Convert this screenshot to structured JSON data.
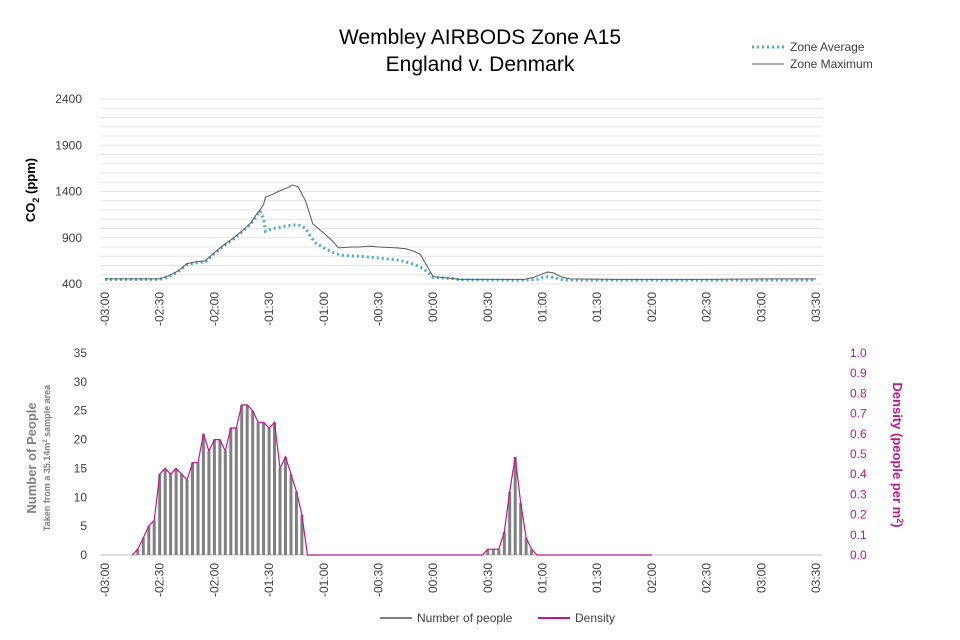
{
  "chart_data": [
    {
      "type": "line",
      "title_line1": "Wembley AIRBODS Zone A15",
      "title_line2": "England  v.  Denmark",
      "ylabel": "CO",
      "ylabel_sub": "2",
      "ylabel_unit": " (ppm)",
      "xlabel": "",
      "ylim": [
        400,
        2400
      ],
      "yticks": [
        400,
        900,
        1400,
        1900,
        2400
      ],
      "xlim": [
        -180,
        210
      ],
      "xticks": [
        -180,
        -150,
        -120,
        -90,
        -60,
        -30,
        0,
        30,
        60,
        90,
        120,
        150,
        180,
        210
      ],
      "xtick_labels": [
        "-03:00",
        "-02:30",
        "-02:00",
        "-01:30",
        "-01:00",
        "-00:30",
        "00:00",
        "00:30",
        "01:00",
        "01:30",
        "02:00",
        "02:30",
        "03:00",
        "03:30"
      ],
      "grid": true,
      "legend_position": "top-right",
      "legend": [
        "Zone Average",
        "Zone Maximum"
      ],
      "series": [
        {
          "name": "Zone Average",
          "color": "#4bacc6",
          "style": "dotted",
          "points": [
            [
              -180,
              450
            ],
            [
              -150,
              450
            ],
            [
              -145,
              480
            ],
            [
              -140,
              530
            ],
            [
              -135,
              610
            ],
            [
              -130,
              630
            ],
            [
              -125,
              640
            ],
            [
              -120,
              730
            ],
            [
              -115,
              810
            ],
            [
              -110,
              880
            ],
            [
              -105,
              960
            ],
            [
              -100,
              1050
            ],
            [
              -97,
              1130
            ],
            [
              -95,
              1190
            ],
            [
              -93,
              1100
            ],
            [
              -92,
              970
            ],
            [
              -88,
              1000
            ],
            [
              -85,
              1010
            ],
            [
              -80,
              1030
            ],
            [
              -75,
              1040
            ],
            [
              -72,
              1030
            ],
            [
              -70,
              1000
            ],
            [
              -65,
              850
            ],
            [
              -60,
              790
            ],
            [
              -55,
              740
            ],
            [
              -50,
              710
            ],
            [
              -40,
              700
            ],
            [
              -30,
              680
            ],
            [
              -20,
              660
            ],
            [
              -15,
              640
            ],
            [
              -10,
              610
            ],
            [
              -5,
              560
            ],
            [
              0,
              470
            ],
            [
              10,
              460
            ],
            [
              15,
              445
            ],
            [
              50,
              440
            ],
            [
              57,
              450
            ],
            [
              60,
              470
            ],
            [
              64,
              480
            ],
            [
              68,
              460
            ],
            [
              70,
              450
            ],
            [
              75,
              440
            ],
            [
              100,
              440
            ],
            [
              150,
              440
            ],
            [
              180,
              440
            ],
            [
              210,
              440
            ]
          ]
        },
        {
          "name": "Zone Maximum",
          "color": "#5a5a5a",
          "style": "solid",
          "points": [
            [
              -180,
              455
            ],
            [
              -150,
              455
            ],
            [
              -145,
              490
            ],
            [
              -140,
              540
            ],
            [
              -135,
              620
            ],
            [
              -130,
              640
            ],
            [
              -125,
              650
            ],
            [
              -120,
              740
            ],
            [
              -115,
              820
            ],
            [
              -110,
              890
            ],
            [
              -105,
              970
            ],
            [
              -100,
              1060
            ],
            [
              -97,
              1150
            ],
            [
              -95,
              1200
            ],
            [
              -93,
              1260
            ],
            [
              -92,
              1340
            ],
            [
              -88,
              1370
            ],
            [
              -85,
              1400
            ],
            [
              -80,
              1440
            ],
            [
              -77,
              1470
            ],
            [
              -74,
              1450
            ],
            [
              -70,
              1300
            ],
            [
              -66,
              1050
            ],
            [
              -60,
              950
            ],
            [
              -55,
              860
            ],
            [
              -52,
              790
            ],
            [
              -45,
              800
            ],
            [
              -40,
              800
            ],
            [
              -35,
              810
            ],
            [
              -30,
              800
            ],
            [
              -20,
              790
            ],
            [
              -15,
              780
            ],
            [
              -10,
              750
            ],
            [
              -7,
              720
            ],
            [
              -5,
              650
            ],
            [
              0,
              480
            ],
            [
              5,
              470
            ],
            [
              10,
              460
            ],
            [
              15,
              450
            ],
            [
              50,
              450
            ],
            [
              55,
              470
            ],
            [
              60,
              510
            ],
            [
              63,
              530
            ],
            [
              66,
              520
            ],
            [
              70,
              480
            ],
            [
              75,
              455
            ],
            [
              100,
              450
            ],
            [
              150,
              450
            ],
            [
              180,
              455
            ],
            [
              210,
              455
            ]
          ]
        }
      ]
    },
    {
      "type": "bar",
      "ylabel": "Number of People",
      "ylabel_sub": "Taken from a 35.14m",
      "ylabel_sub_sup": "2",
      "ylabel_sub_end": " sample area",
      "ylabel_right": "Density (people per m",
      "ylabel_right_sup": "2",
      "ylabel_right_end": ")",
      "ylim": [
        0,
        35
      ],
      "yticks": [
        0,
        5,
        10,
        15,
        20,
        25,
        30,
        35
      ],
      "ylim_right": [
        0,
        1.0
      ],
      "yticks_right": [
        "0.0",
        "0.1",
        "0.2",
        "0.3",
        "0.4",
        "0.5",
        "0.6",
        "0.7",
        "0.8",
        "0.9",
        "1.0"
      ],
      "xlim": [
        -180,
        210
      ],
      "xticks": [
        -180,
        -150,
        -120,
        -90,
        -60,
        -30,
        0,
        30,
        60,
        90,
        120,
        150,
        180,
        210
      ],
      "xtick_labels": [
        "-03:00",
        "-02:30",
        "-02:00",
        "-01:30",
        "-01:00",
        "-00:30",
        "00:00",
        "00:30",
        "01:00",
        "01:30",
        "02:00",
        "02:30",
        "03:00",
        "03:30"
      ],
      "grid": false,
      "legend_position": "bottom",
      "legend": [
        "Number of people",
        "Density"
      ],
      "bar_color": "#808080",
      "density_color": "#c0168c",
      "x": [
        -165,
        -162,
        -159,
        -156,
        -153,
        -150,
        -147,
        -144,
        -141,
        -138,
        -135,
        -132,
        -129,
        -126,
        -123,
        -120,
        -117,
        -114,
        -111,
        -108,
        -105,
        -102,
        -99,
        -96,
        -93,
        -90,
        -87,
        -84,
        -81,
        -78,
        -75,
        -72,
        -69,
        -66,
        -63,
        -60,
        -57,
        -54,
        -51,
        -48,
        -45,
        -42,
        -39,
        -36,
        -33,
        -30,
        -27,
        -24,
        -21,
        -18,
        -15,
        -12,
        -9,
        -6,
        -3,
        0,
        3,
        6,
        9,
        12,
        15,
        18,
        21,
        24,
        27,
        30,
        33,
        36,
        39,
        42,
        45,
        48,
        51,
        54,
        57,
        60,
        63,
        66,
        69,
        72,
        75,
        78,
        81,
        84,
        87,
        90,
        93,
        96,
        99,
        102,
        105,
        108,
        111,
        114,
        117,
        120
      ],
      "values": [
        0,
        1,
        3,
        5,
        6,
        14,
        15,
        14,
        15,
        14,
        13,
        16,
        16,
        21,
        18,
        20,
        20,
        18,
        22,
        22,
        26,
        26,
        25,
        23,
        23,
        22,
        23,
        15,
        17,
        14,
        11,
        7,
        0,
        0,
        0,
        0,
        0,
        0,
        0,
        0,
        0,
        0,
        0,
        0,
        0,
        0,
        0,
        0,
        0,
        0,
        0,
        0,
        0,
        0,
        0,
        0,
        0,
        0,
        0,
        0,
        0,
        0,
        0,
        0,
        0,
        1,
        1,
        1,
        4,
        11,
        17,
        9,
        3,
        1,
        0,
        0,
        0,
        0,
        0,
        0,
        0,
        0,
        0,
        0,
        0,
        0,
        0,
        0,
        0,
        0,
        0,
        0,
        0,
        0,
        0,
        0
      ],
      "series": [
        {
          "name": "Number of people",
          "color": "#808080"
        },
        {
          "name": "Density",
          "color": "#c0168c"
        }
      ]
    }
  ]
}
